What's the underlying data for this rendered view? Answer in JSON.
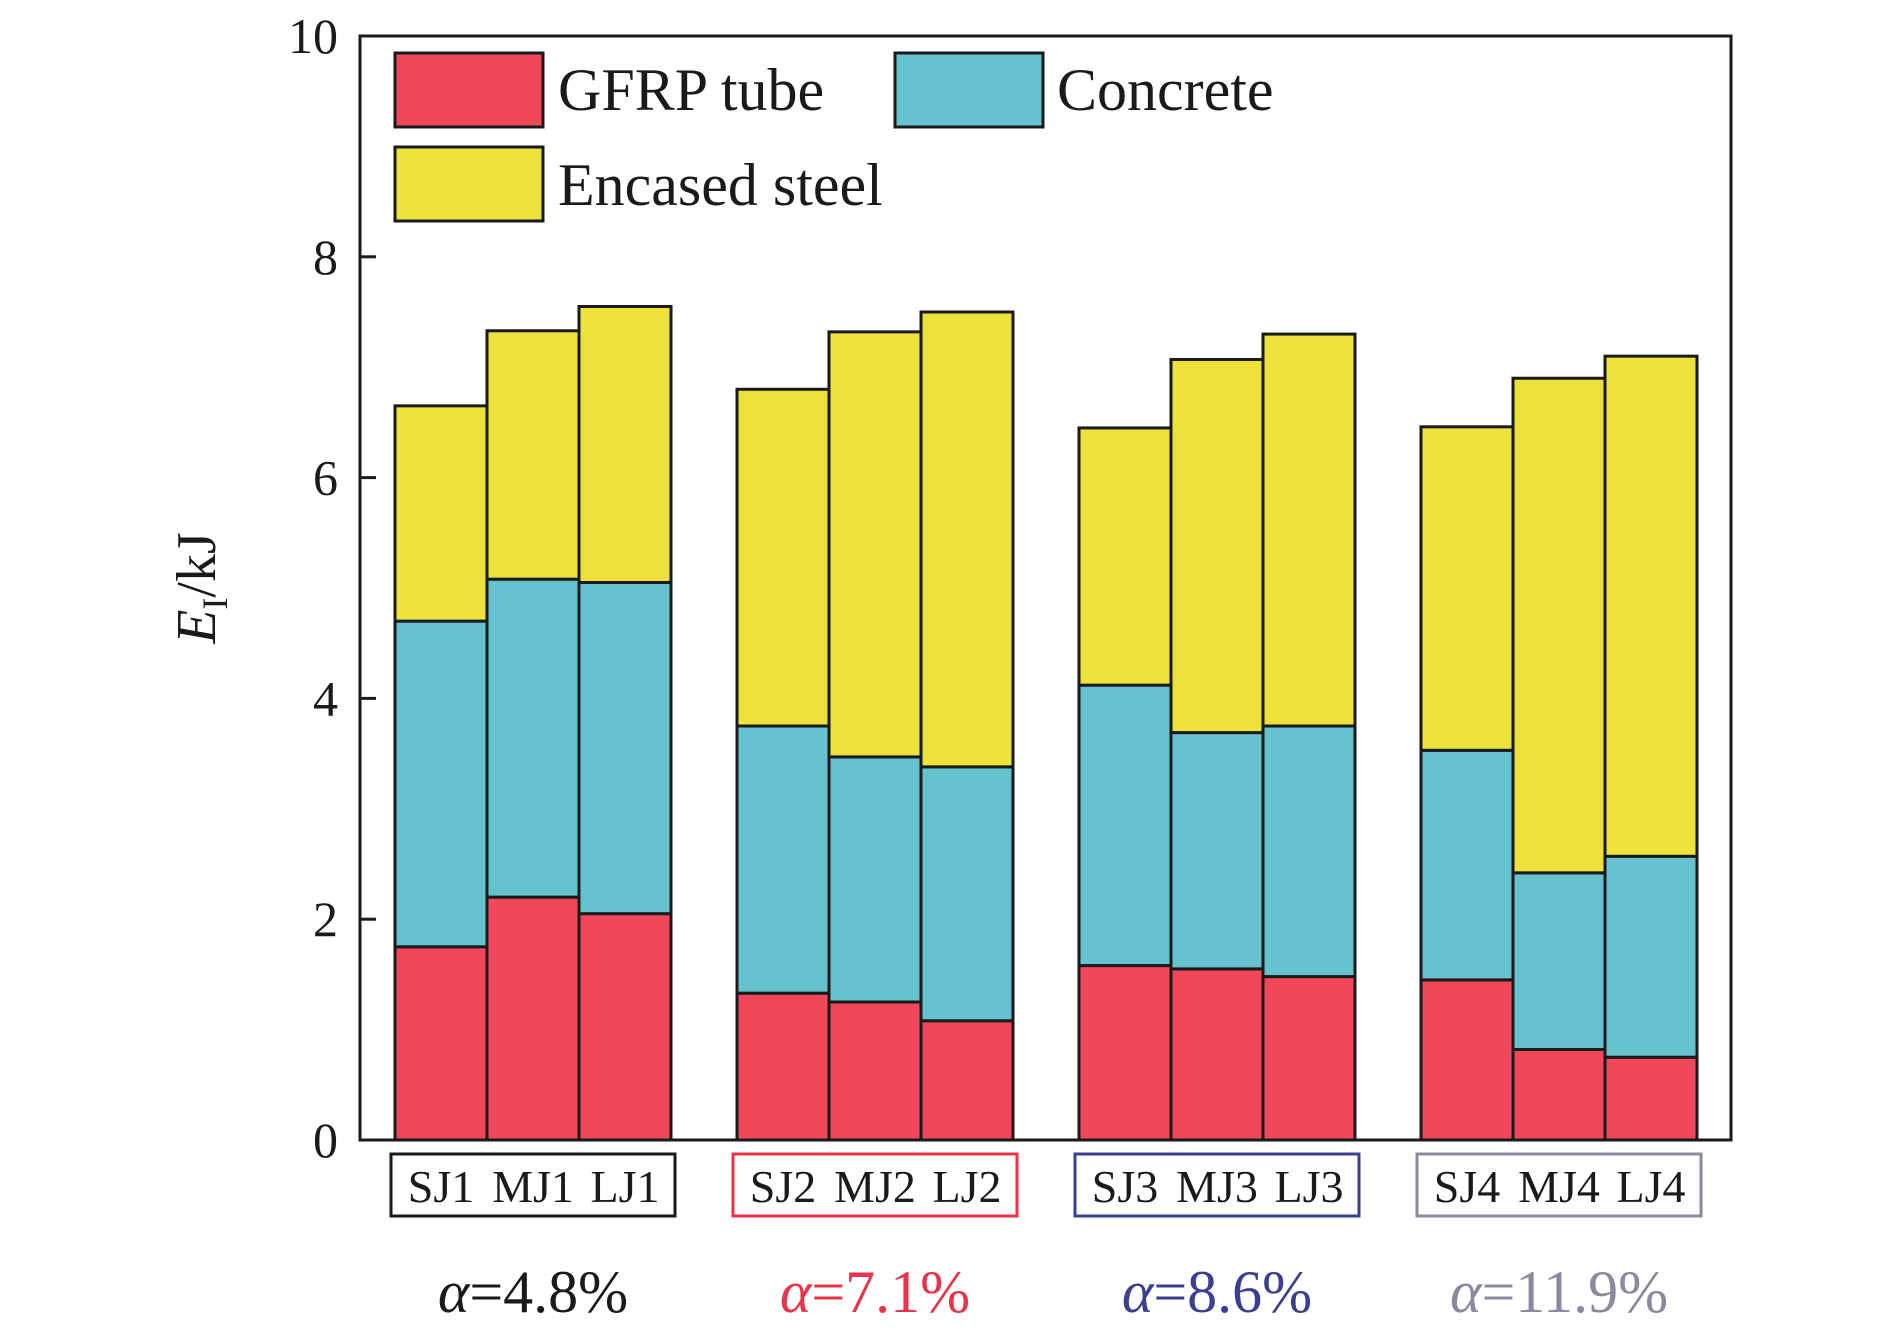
{
  "chart_data": {
    "type": "bar",
    "stacked": true,
    "ylabel_main": "E",
    "ylabel_sub": "I",
    "ylabel_unit": "/kJ",
    "ylim": [
      0,
      10
    ],
    "yticks": [
      "0",
      "2",
      "4",
      "6",
      "8",
      "10"
    ],
    "legend": {
      "placement": "top-left",
      "items": [
        {
          "name": "GFRP tube",
          "color": "#f0475a"
        },
        {
          "name": "Concrete",
          "color": "#67c2cf"
        },
        {
          "name": "Encased steel",
          "color": "#ede23c"
        }
      ]
    },
    "groups": [
      {
        "label": [
          "SJ1",
          "MJ1",
          "LJ1"
        ],
        "alpha_symbol": "α",
        "alpha_value": "=4.8%",
        "color": "#1a1a1a",
        "bars": [
          {
            "gfrp": 1.75,
            "concrete": 2.95,
            "steel": 1.95
          },
          {
            "gfrp": 2.2,
            "concrete": 2.88,
            "steel": 2.25
          },
          {
            "gfrp": 2.05,
            "concrete": 3.0,
            "steel": 2.5
          }
        ]
      },
      {
        "label": [
          "SJ2",
          "MJ2",
          "LJ2"
        ],
        "alpha_symbol": "α",
        "alpha_value": "=7.1%",
        "color": "#e8334a",
        "bars": [
          {
            "gfrp": 1.33,
            "concrete": 2.42,
            "steel": 3.05
          },
          {
            "gfrp": 1.25,
            "concrete": 2.22,
            "steel": 3.85
          },
          {
            "gfrp": 1.08,
            "concrete": 2.3,
            "steel": 4.12
          }
        ]
      },
      {
        "label": [
          "SJ3",
          "MJ3",
          "LJ3"
        ],
        "alpha_symbol": "α",
        "alpha_value": "=8.6%",
        "color": "#3b3f8f",
        "bars": [
          {
            "gfrp": 1.58,
            "concrete": 2.54,
            "steel": 2.33
          },
          {
            "gfrp": 1.55,
            "concrete": 2.14,
            "steel": 3.38
          },
          {
            "gfrp": 1.48,
            "concrete": 2.27,
            "steel": 3.55
          }
        ]
      },
      {
        "label": [
          "SJ4",
          "MJ4",
          "LJ4"
        ],
        "alpha_symbol": "α",
        "alpha_value": "=11.9%",
        "color": "#8a8a9e",
        "bars": [
          {
            "gfrp": 1.45,
            "concrete": 2.08,
            "steel": 2.93
          },
          {
            "gfrp": 0.82,
            "concrete": 1.6,
            "steel": 4.48
          },
          {
            "gfrp": 0.75,
            "concrete": 1.82,
            "steel": 4.53
          }
        ]
      }
    ]
  }
}
